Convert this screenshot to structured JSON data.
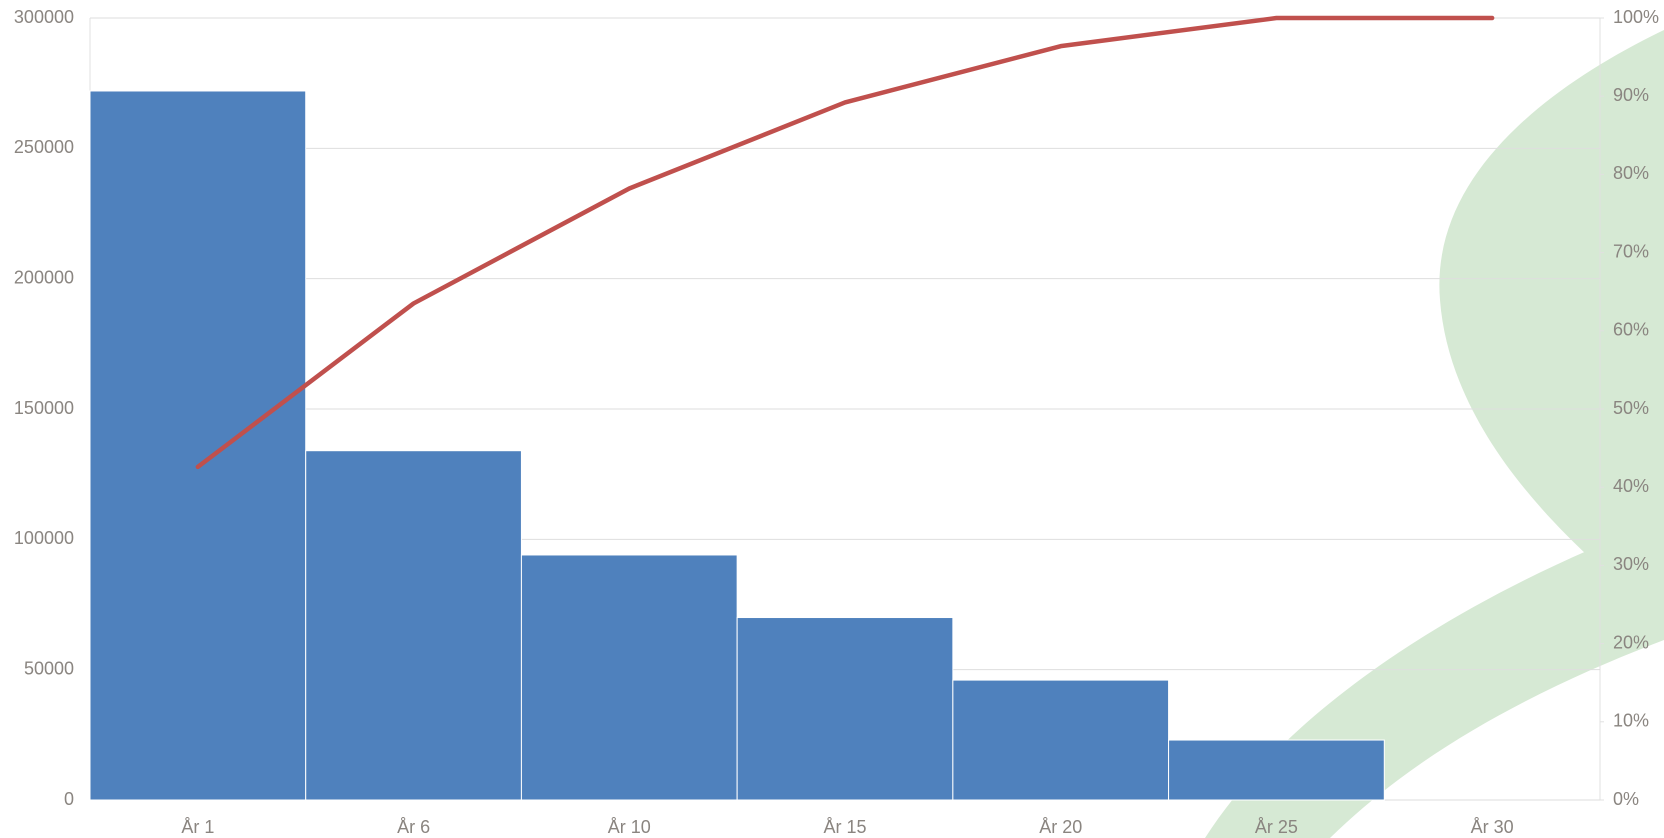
{
  "chart_data": {
    "type": "pareto",
    "categories": [
      "År 1",
      "År 6",
      "År 10",
      "År 15",
      "År 20",
      "År 25",
      "År 30"
    ],
    "series": [
      {
        "type": "bar",
        "color": "#4f81bd",
        "values": [
          272000,
          134000,
          94000,
          70000,
          46000,
          23000,
          0
        ]
      },
      {
        "type": "line",
        "color": "#c0504d",
        "axis": "y2",
        "values": [
          42.6,
          63.5,
          78.2,
          89.2,
          96.4,
          100,
          100
        ]
      }
    ],
    "ylim": [
      0,
      300000
    ],
    "yticks": [
      0,
      50000,
      100000,
      150000,
      200000,
      250000,
      300000
    ],
    "y2lim": [
      0,
      100
    ],
    "y2ticks": [
      {
        "value": 0,
        "label": "0%"
      },
      {
        "value": 10,
        "label": "10%"
      },
      {
        "value": 20,
        "label": "20%"
      },
      {
        "value": 30,
        "label": "30%"
      },
      {
        "value": 40,
        "label": "40%"
      },
      {
        "value": 50,
        "label": "50%"
      },
      {
        "value": 60,
        "label": "60%"
      },
      {
        "value": 70,
        "label": "70%"
      },
      {
        "value": 80,
        "label": "80%"
      },
      {
        "value": 90,
        "label": "90%"
      },
      {
        "value": 100,
        "label": "100%"
      }
    ],
    "grid": true
  }
}
